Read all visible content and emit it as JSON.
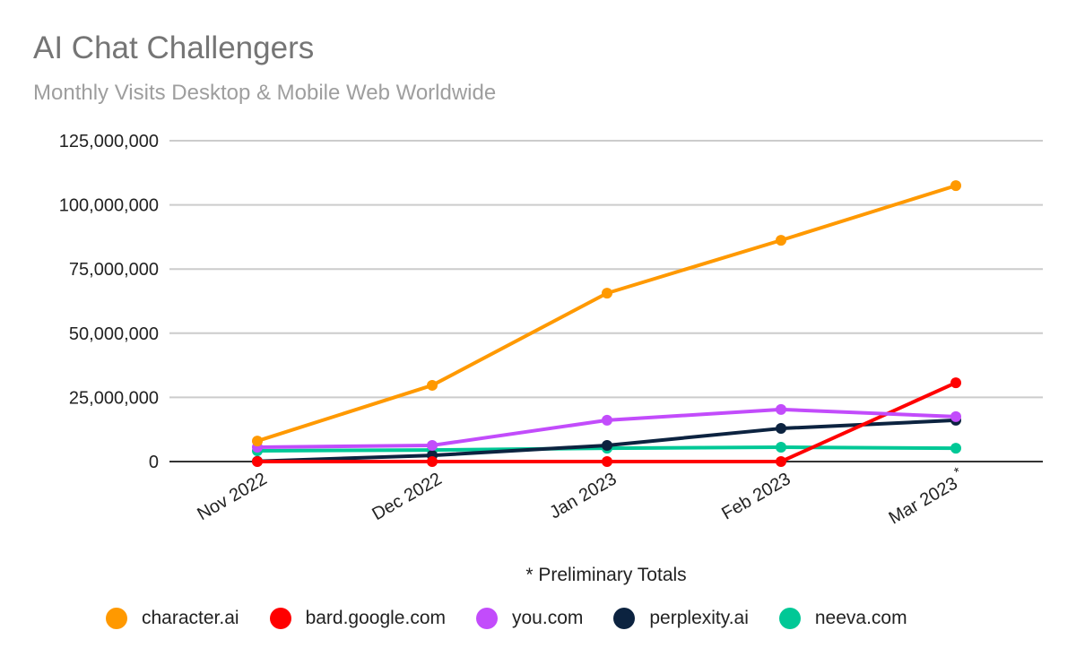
{
  "header": {
    "title": "AI Chat Challengers",
    "subtitle": "Monthly Visits Desktop & Mobile Web Worldwide"
  },
  "note": "* Preliminary Totals",
  "chart_data": {
    "type": "line",
    "title": "AI Chat Challengers",
    "subtitle": "Monthly Visits Desktop & Mobile Web Worldwide",
    "xlabel": "",
    "ylabel": "",
    "categories": [
      "Nov 2022",
      "Dec 2022",
      "Jan 2023",
      "Feb 2023",
      "Mar 2023 *"
    ],
    "ylim": [
      0,
      125000000
    ],
    "yticks": [
      0,
      25000000,
      50000000,
      75000000,
      100000000,
      125000000
    ],
    "ytick_labels": [
      "0",
      "25,000,000",
      "50,000,000",
      "75,000,000",
      "100,000,000",
      "125,000,000"
    ],
    "grid": true,
    "legend_position": "bottom",
    "annotation": "* Preliminary Totals",
    "series": [
      {
        "name": "character.ai",
        "color": "#ff9900",
        "values": [
          8000000,
          29700000,
          65600000,
          86200000,
          107500000
        ]
      },
      {
        "name": "bard.google.com",
        "color": "#ff0000",
        "values": [
          0,
          0,
          0,
          0,
          30700000
        ]
      },
      {
        "name": "you.com",
        "color": "#c24cfb",
        "values": [
          5600000,
          6300000,
          16100000,
          20300000,
          17500000
        ]
      },
      {
        "name": "perplexity.ai",
        "color": "#0c2340",
        "values": [
          100000,
          2400000,
          6300000,
          12900000,
          16100000
        ]
      },
      {
        "name": "neeva.com",
        "color": "#00c896",
        "values": [
          4200000,
          4500000,
          5200000,
          5600000,
          5200000
        ]
      }
    ]
  }
}
